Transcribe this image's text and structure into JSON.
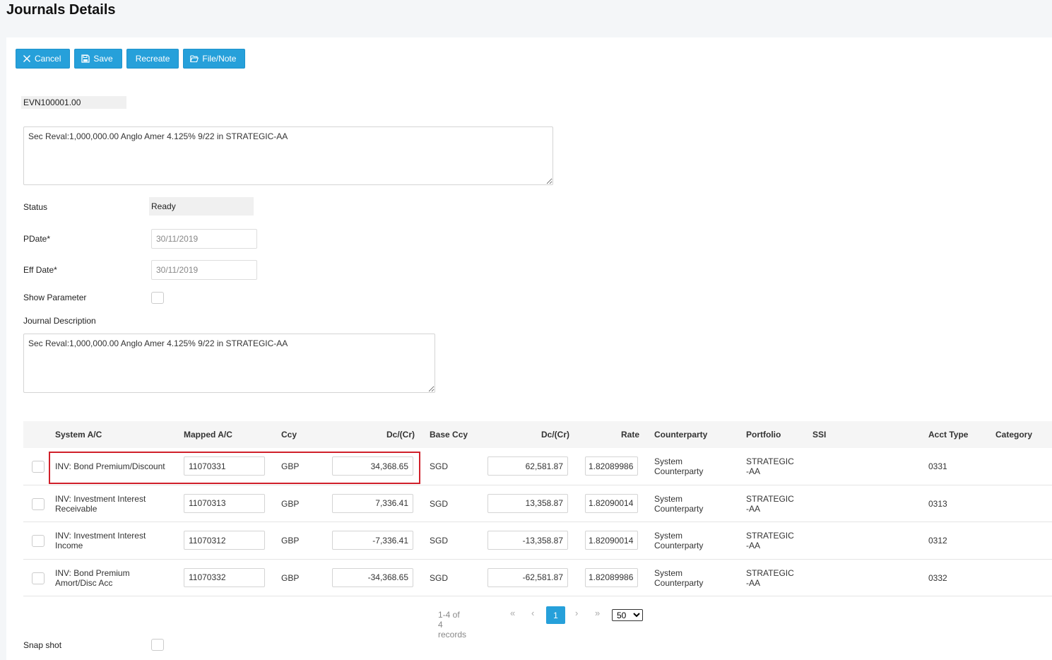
{
  "page": {
    "title": "Journals Details"
  },
  "toolbar": {
    "cancel_label": "Cancel",
    "save_label": "Save",
    "recreate_label": "Recreate",
    "file_note_label": "File/Note"
  },
  "header": {
    "journal_id": "EVN100001.00",
    "note_text": "Sec Reval:1,000,000.00 Anglo Amer 4.125% 9/22 in STRATEGIC-AA"
  },
  "form": {
    "status_label": "Status",
    "status_value": "Ready",
    "pdate_label": "PDate*",
    "pdate_value": "30/11/2019",
    "effdate_label": "Eff Date*",
    "effdate_value": "30/11/2019",
    "show_parameter_label": "Show Parameter",
    "journal_description_label": "Journal Description",
    "journal_description_value": "Sec Reval:1,000,000.00 Anglo Amer 4.125% 9/22 in STRATEGIC-AA",
    "snapshot_label": "Snap shot"
  },
  "table": {
    "headers": {
      "system_ac": "System A/C",
      "mapped_ac": "Mapped A/C",
      "ccy": "Ccy",
      "dc": "Dc/(Cr)",
      "base_ccy": "Base Ccy",
      "base_dc": "Dc/(Cr)",
      "rate": "Rate",
      "counterparty": "Counterparty",
      "portfolio": "Portfolio",
      "ssi": "SSI",
      "acct_type": "Acct Type",
      "category": "Category"
    },
    "rows": [
      {
        "system_ac": "INV: Bond Premium/Discount",
        "mapped_ac": "11070331",
        "ccy": "GBP",
        "dc": "34,368.65",
        "base_ccy": "SGD",
        "base_dc": "62,581.87",
        "rate": "1.82089986",
        "counterparty": "System Counterparty",
        "portfolio": "STRATEGIC-AA",
        "acct_type": "0331"
      },
      {
        "system_ac": "INV: Investment Interest Receivable",
        "mapped_ac": "11070313",
        "ccy": "GBP",
        "dc": "7,336.41",
        "base_ccy": "SGD",
        "base_dc": "13,358.87",
        "rate": "1.82090014",
        "counterparty": "System Counterparty",
        "portfolio": "STRATEGIC-AA",
        "acct_type": "0313"
      },
      {
        "system_ac": "INV: Investment Interest Income",
        "mapped_ac": "11070312",
        "ccy": "GBP",
        "dc": "-7,336.41",
        "base_ccy": "SGD",
        "base_dc": "-13,358.87",
        "rate": "1.82090014",
        "counterparty": "System Counterparty",
        "portfolio": "STRATEGIC-AA",
        "acct_type": "0312"
      },
      {
        "system_ac": "INV: Bond Premium Amort/Disc Acc",
        "mapped_ac": "11070332",
        "ccy": "GBP",
        "dc": "-34,368.65",
        "base_ccy": "SGD",
        "base_dc": "-62,581.87",
        "rate": "1.82089986",
        "counterparty": "System Counterparty",
        "portfolio": "STRATEGIC-AA",
        "acct_type": "0332"
      }
    ]
  },
  "pager": {
    "info": "1-4 of 4 records",
    "current_page": "1",
    "page_size": "50"
  },
  "colors": {
    "accent": "#26a0da",
    "highlight": "#d0202a"
  }
}
